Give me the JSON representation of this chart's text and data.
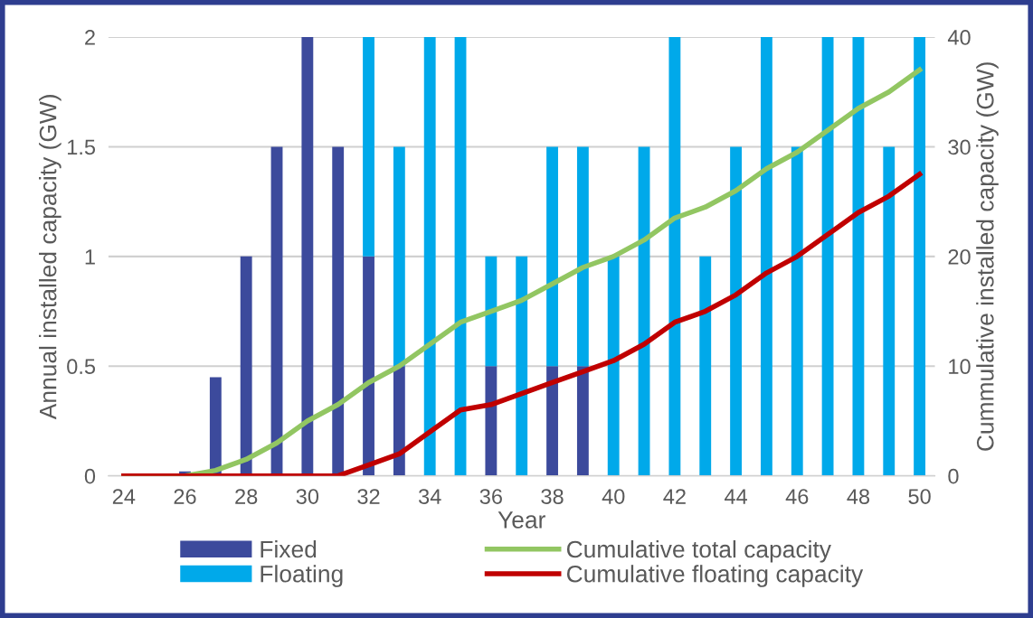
{
  "chart_data": {
    "type": "bar",
    "stacked": true,
    "xlabel": "Year",
    "ylabel": "Annual installed capacity (GW)",
    "y2label": "Cummulative installed capacity (GW)",
    "x": [
      24,
      25,
      26,
      27,
      28,
      29,
      30,
      31,
      32,
      33,
      34,
      35,
      36,
      37,
      38,
      39,
      40,
      41,
      42,
      43,
      44,
      45,
      46,
      47,
      48,
      49,
      50
    ],
    "series": [
      {
        "name": "Fixed",
        "color": "#3c4a9c",
        "values": [
          0,
          0,
          0.02,
          0.45,
          1,
          1.5,
          2,
          1.5,
          1,
          0.5,
          0,
          0,
          0.5,
          0,
          0.5,
          0.5,
          0,
          0,
          0,
          0,
          0,
          0,
          0,
          0,
          0,
          0,
          0
        ]
      },
      {
        "name": "Floating",
        "color": "#00a9ea",
        "values": [
          0,
          0,
          0,
          0,
          0,
          0,
          0,
          0,
          1,
          1,
          2,
          2,
          0.5,
          1,
          1,
          1,
          1,
          1.5,
          2,
          1,
          1.5,
          2,
          1.5,
          2,
          2,
          1.5,
          2
        ]
      },
      {
        "name": "Cumulative total capacity",
        "type": "line",
        "axis": "y2",
        "color": "#92c662",
        "values": [
          0,
          0,
          0,
          0.5,
          1.5,
          3,
          5,
          6.5,
          8.5,
          10,
          12,
          14,
          15,
          16,
          17.5,
          19,
          20,
          21.5,
          23.5,
          24.5,
          26,
          28,
          29.5,
          31.5,
          33.5,
          35,
          37
        ]
      },
      {
        "name": "Cumulative floating capacity",
        "type": "line",
        "axis": "y2",
        "color": "#c00000",
        "values": [
          0,
          0,
          0,
          0,
          0,
          0,
          0,
          0,
          1,
          2,
          4,
          6,
          6.5,
          7.5,
          8.5,
          9.5,
          10.5,
          12,
          14,
          15,
          16.5,
          18.5,
          20,
          22,
          24,
          25.5,
          27.5
        ]
      }
    ],
    "xlim": [
      23.5,
      50.5
    ],
    "xticks": [
      24,
      26,
      28,
      30,
      32,
      34,
      36,
      38,
      40,
      42,
      44,
      46,
      48,
      50
    ],
    "ylim": [
      0,
      2
    ],
    "yticks": [
      0,
      0.5,
      1,
      1.5,
      2
    ],
    "y2lim": [
      0,
      40
    ],
    "y2ticks": [
      0,
      10,
      20,
      30,
      40
    ],
    "grid": "y",
    "legend": "bottom"
  }
}
